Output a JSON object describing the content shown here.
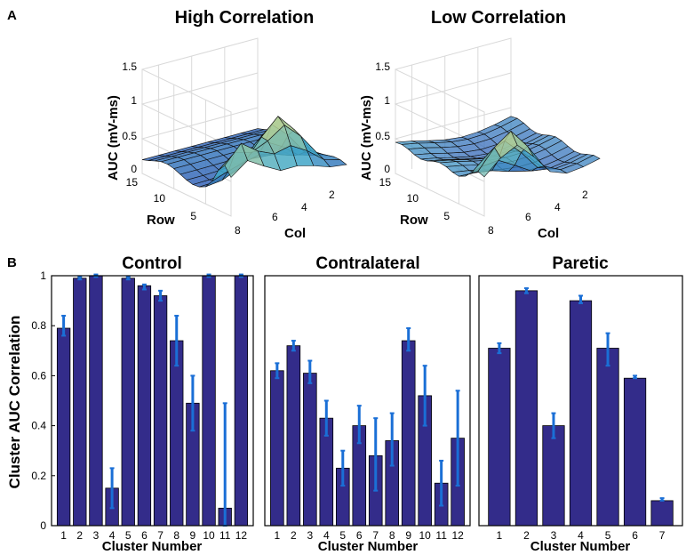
{
  "panel_labels": [
    "A",
    "B"
  ],
  "chart_data": [
    {
      "type": "surface",
      "title": "High Correlation",
      "zlabel": "AUC (mV-ms)",
      "xlabel": "Row",
      "ylabel": "Col",
      "z_ticks": [
        "0",
        "0.5",
        "1",
        "1.5"
      ],
      "row_ticks": [
        "15",
        "10",
        "5"
      ],
      "col_ticks": [
        "8",
        "6",
        "4",
        "2"
      ],
      "zlim": [
        0,
        1.5
      ]
    },
    {
      "type": "surface",
      "title": "Low Correlation",
      "zlabel": "AUC (mV-ms)",
      "xlabel": "Row",
      "ylabel": "Col",
      "z_ticks": [
        "0",
        "0.5",
        "1",
        "1.5"
      ],
      "row_ticks": [
        "15",
        "10",
        "5"
      ],
      "col_ticks": [
        "8",
        "6",
        "4",
        "2"
      ],
      "zlim": [
        0,
        1.5
      ]
    },
    {
      "type": "bar",
      "title": "Control",
      "xlabel": "Cluster Number",
      "ylabel": "Cluster AUC Correlation",
      "ylim": [
        0,
        1
      ],
      "y_ticks": [
        "0",
        "0.2",
        "0.4",
        "0.6",
        "0.8",
        "1"
      ],
      "categories": [
        "1",
        "2",
        "3",
        "4",
        "5",
        "6",
        "7",
        "8",
        "9",
        "10",
        "11",
        "12"
      ],
      "values": [
        0.79,
        0.99,
        1.0,
        0.15,
        0.99,
        0.96,
        0.92,
        0.74,
        0.49,
        1.0,
        0.07,
        1.0
      ],
      "err_low": [
        0.76,
        0.985,
        0.995,
        0.07,
        0.985,
        0.945,
        0.9,
        0.64,
        0.38,
        0.995,
        0.0,
        0.995
      ],
      "err_high": [
        0.84,
        0.995,
        1.005,
        0.23,
        0.995,
        0.965,
        0.94,
        0.84,
        0.6,
        1.005,
        0.49,
        1.005
      ]
    },
    {
      "type": "bar",
      "title": "Contralateral",
      "xlabel": "Cluster Number",
      "ylabel": "",
      "ylim": [
        0,
        1
      ],
      "categories": [
        "1",
        "2",
        "3",
        "4",
        "5",
        "6",
        "7",
        "8",
        "9",
        "10",
        "11",
        "12"
      ],
      "values": [
        0.62,
        0.72,
        0.61,
        0.43,
        0.23,
        0.4,
        0.28,
        0.34,
        0.74,
        0.52,
        0.17,
        0.35
      ],
      "err_low": [
        0.59,
        0.7,
        0.57,
        0.36,
        0.16,
        0.33,
        0.14,
        0.24,
        0.7,
        0.4,
        0.08,
        0.16
      ],
      "err_high": [
        0.65,
        0.74,
        0.66,
        0.5,
        0.3,
        0.48,
        0.43,
        0.45,
        0.79,
        0.64,
        0.26,
        0.54
      ]
    },
    {
      "type": "bar",
      "title": "Paretic",
      "xlabel": "Cluster Number",
      "ylabel": "",
      "ylim": [
        0,
        1
      ],
      "categories": [
        "1",
        "2",
        "3",
        "4",
        "5",
        "6",
        "7"
      ],
      "values": [
        0.71,
        0.94,
        0.4,
        0.9,
        0.71,
        0.59,
        0.1
      ],
      "err_low": [
        0.69,
        0.93,
        0.35,
        0.89,
        0.64,
        0.59,
        0.1
      ],
      "err_high": [
        0.73,
        0.95,
        0.45,
        0.92,
        0.77,
        0.6,
        0.11
      ]
    }
  ],
  "colors": {
    "bar_fill": "#332c8a",
    "bar_edge": "#000000",
    "error_bar": "#1a6fd6",
    "surface_low": "#2f3fb0",
    "surface_mid": "#41a8c8",
    "surface_high": "#f1e47a",
    "grid": "#d9d9d9"
  }
}
